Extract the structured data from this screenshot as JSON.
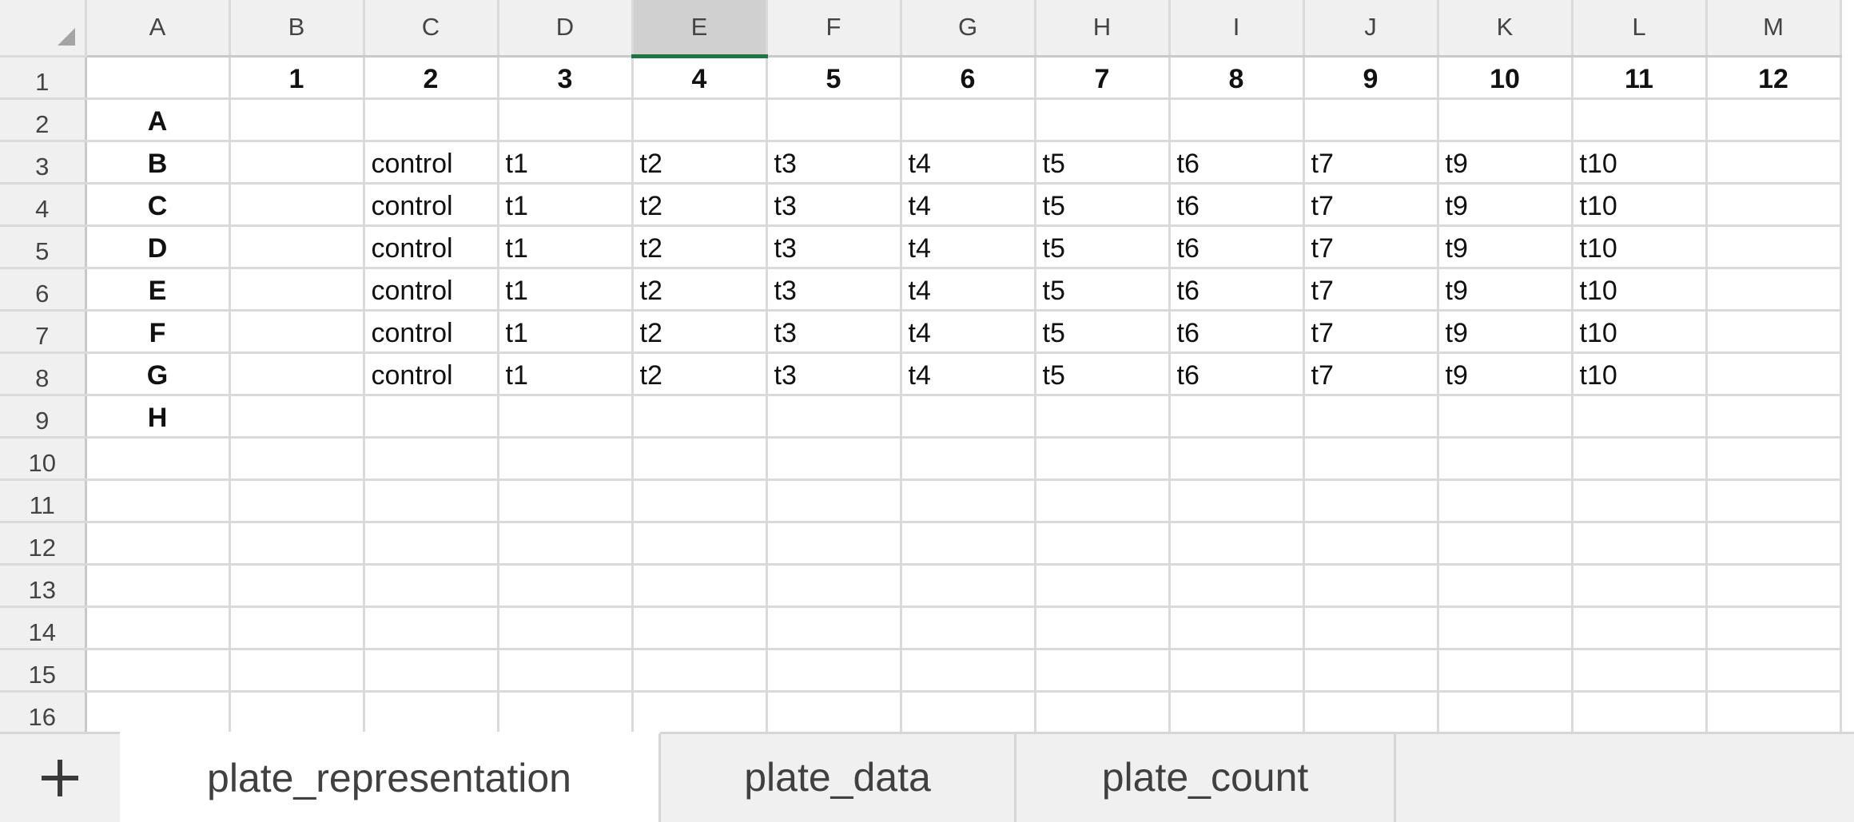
{
  "sheet": {
    "columns": [
      "A",
      "B",
      "C",
      "D",
      "E",
      "F",
      "G",
      "H",
      "I",
      "J",
      "K",
      "L",
      "M"
    ],
    "selected_column": "E",
    "rows": [
      {
        "num": "1",
        "cells": [
          "",
          "1",
          "2",
          "3",
          "4",
          "5",
          "6",
          "7",
          "8",
          "9",
          "10",
          "11",
          "12"
        ]
      },
      {
        "num": "2",
        "cells": [
          "A",
          "",
          "",
          "",
          "",
          "",
          "",
          "",
          "",
          "",
          "",
          "",
          ""
        ]
      },
      {
        "num": "3",
        "cells": [
          "B",
          "",
          "control",
          "t1",
          "t2",
          "t3",
          "t4",
          "t5",
          "t6",
          "t7",
          "t9",
          "t10",
          ""
        ]
      },
      {
        "num": "4",
        "cells": [
          "C",
          "",
          "control",
          "t1",
          "t2",
          "t3",
          "t4",
          "t5",
          "t6",
          "t7",
          "t9",
          "t10",
          ""
        ]
      },
      {
        "num": "5",
        "cells": [
          "D",
          "",
          "control",
          "t1",
          "t2",
          "t3",
          "t4",
          "t5",
          "t6",
          "t7",
          "t9",
          "t10",
          ""
        ]
      },
      {
        "num": "6",
        "cells": [
          "E",
          "",
          "control",
          "t1",
          "t2",
          "t3",
          "t4",
          "t5",
          "t6",
          "t7",
          "t9",
          "t10",
          ""
        ]
      },
      {
        "num": "7",
        "cells": [
          "F",
          "",
          "control",
          "t1",
          "t2",
          "t3",
          "t4",
          "t5",
          "t6",
          "t7",
          "t9",
          "t10",
          ""
        ]
      },
      {
        "num": "8",
        "cells": [
          "G",
          "",
          "control",
          "t1",
          "t2",
          "t3",
          "t4",
          "t5",
          "t6",
          "t7",
          "t9",
          "t10",
          ""
        ]
      },
      {
        "num": "9",
        "cells": [
          "H",
          "",
          "",
          "",
          "",
          "",
          "",
          "",
          "",
          "",
          "",
          "",
          ""
        ]
      },
      {
        "num": "10",
        "cells": [
          "",
          "",
          "",
          "",
          "",
          "",
          "",
          "",
          "",
          "",
          "",
          "",
          ""
        ]
      },
      {
        "num": "11",
        "cells": [
          "",
          "",
          "",
          "",
          "",
          "",
          "",
          "",
          "",
          "",
          "",
          "",
          ""
        ]
      },
      {
        "num": "12",
        "cells": [
          "",
          "",
          "",
          "",
          "",
          "",
          "",
          "",
          "",
          "",
          "",
          "",
          ""
        ]
      },
      {
        "num": "13",
        "cells": [
          "",
          "",
          "",
          "",
          "",
          "",
          "",
          "",
          "",
          "",
          "",
          "",
          ""
        ]
      },
      {
        "num": "14",
        "cells": [
          "",
          "",
          "",
          "",
          "",
          "",
          "",
          "",
          "",
          "",
          "",
          "",
          ""
        ]
      },
      {
        "num": "15",
        "cells": [
          "",
          "",
          "",
          "",
          "",
          "",
          "",
          "",
          "",
          "",
          "",
          "",
          ""
        ]
      },
      {
        "num": "16",
        "cells": [
          "",
          "",
          "",
          "",
          "",
          "",
          "",
          "",
          "",
          "",
          "",
          "",
          ""
        ]
      }
    ]
  },
  "tabs": {
    "add_icon": "plus-icon",
    "items": [
      {
        "label": "plate_representation",
        "active": true
      },
      {
        "label": "plate_data",
        "active": false
      },
      {
        "label": "plate_count",
        "active": false
      }
    ]
  },
  "colors": {
    "selected_accent": "#217346"
  }
}
